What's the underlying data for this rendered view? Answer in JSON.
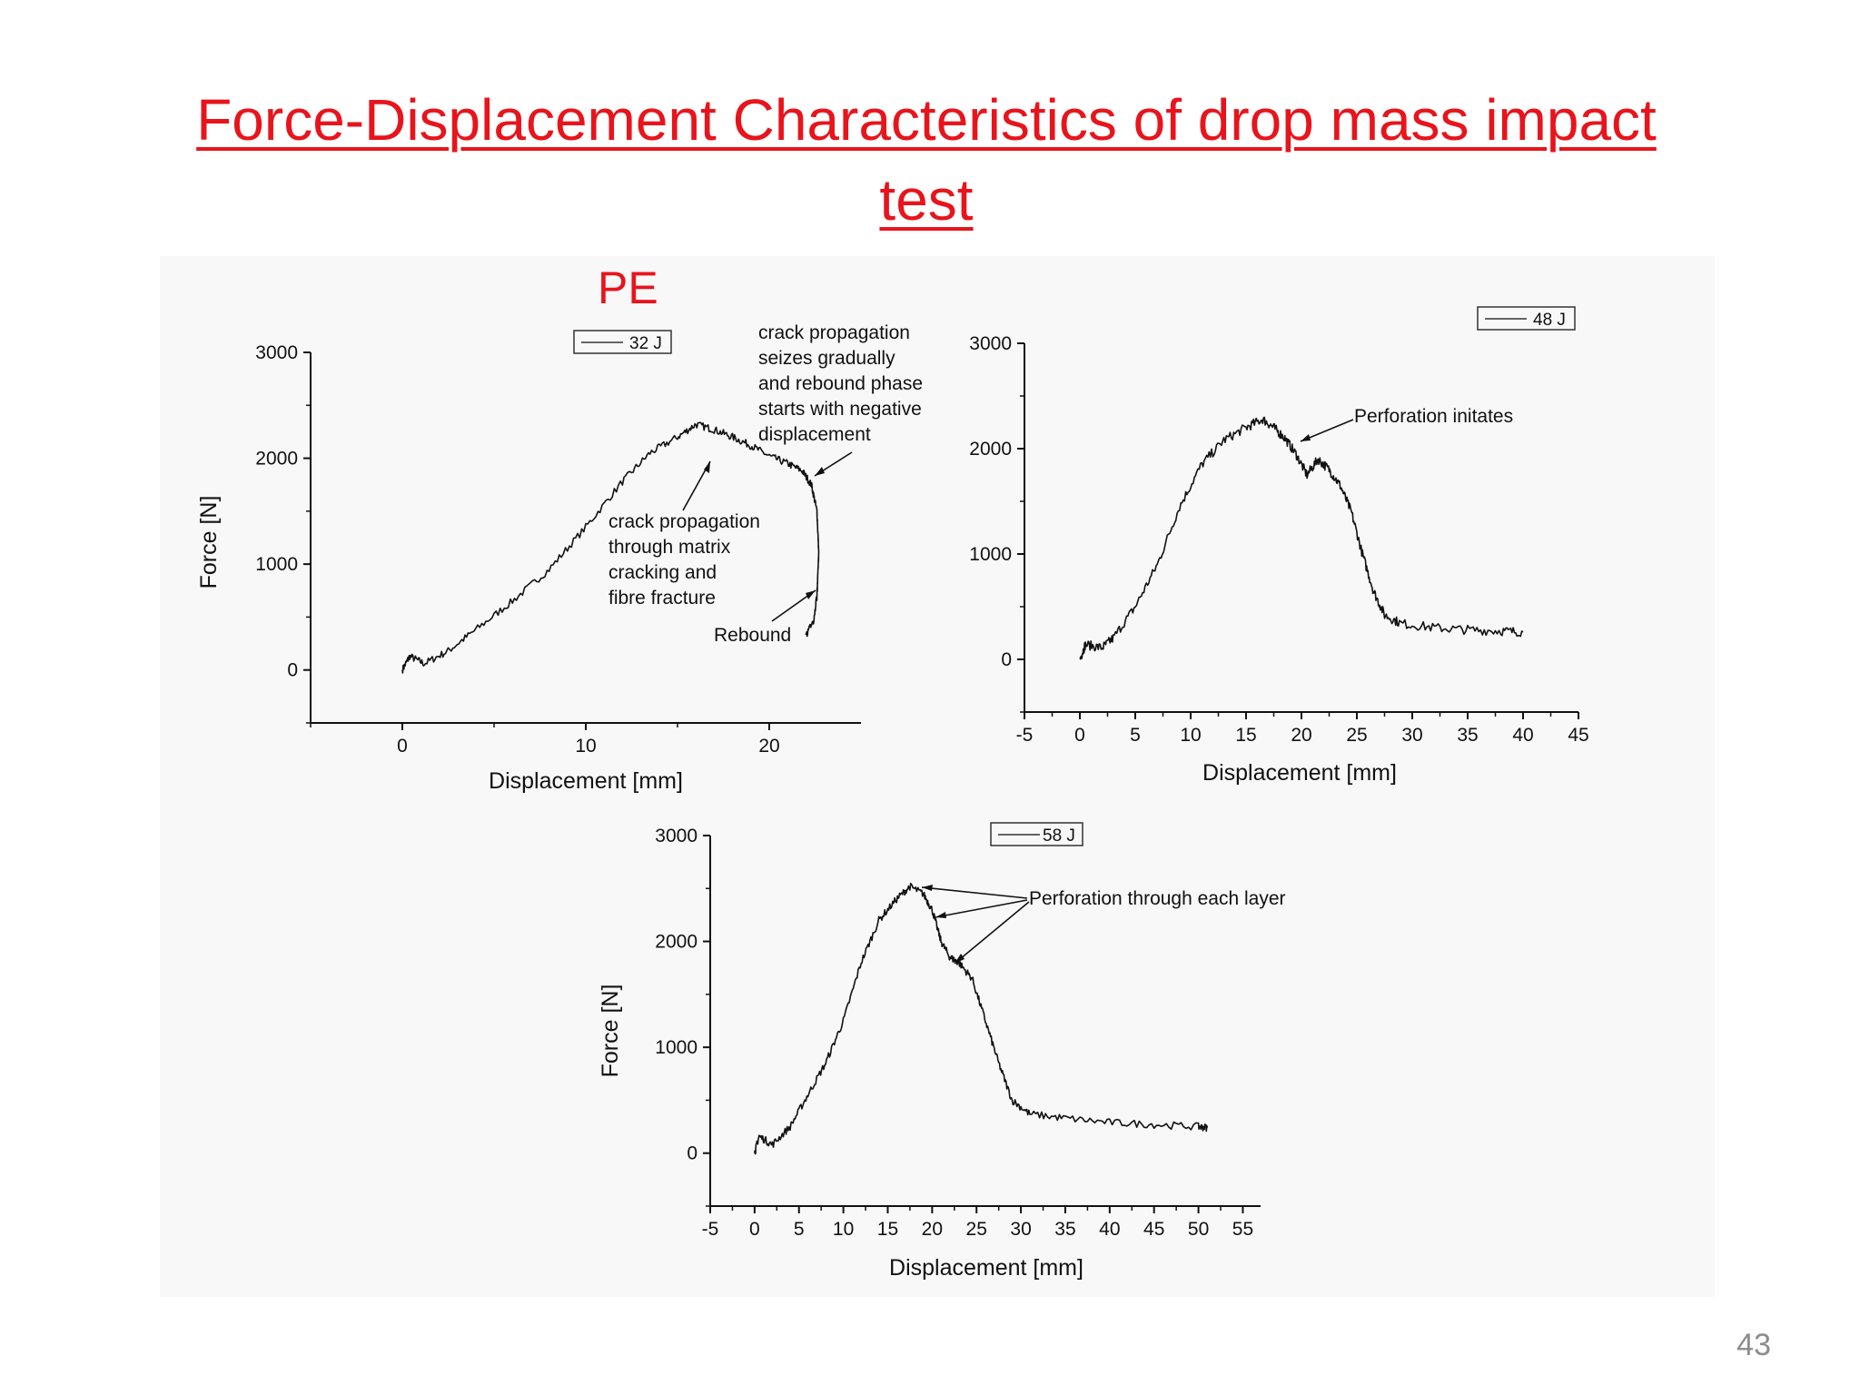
{
  "slide": {
    "title": "Force-Displacement Characteristics of drop mass impact test",
    "section_label": "PE",
    "page_number": "43"
  },
  "colors": {
    "title": "#e8141c",
    "curve": "#111111"
  },
  "chart_data": [
    {
      "type": "line",
      "xlabel": "Displacement [mm]",
      "ylabel": "Force [N]",
      "xlim": [
        -5,
        25
      ],
      "ylim": [
        -500,
        3000
      ],
      "xticks": [
        0,
        10,
        20
      ],
      "yticks": [
        0,
        1000,
        2000,
        3000
      ],
      "legend": "32 J",
      "series": [
        {
          "name": "32 J",
          "x": [
            0,
            0.4,
            1.2,
            2.5,
            4,
            6,
            8,
            10,
            12,
            13.5,
            15,
            16,
            17,
            18,
            19,
            20,
            21,
            21.8,
            22.3,
            22.6,
            22.7,
            22.6,
            22.4,
            22.0
          ],
          "y": [
            0,
            130,
            60,
            180,
            380,
            650,
            950,
            1350,
            1780,
            2050,
            2200,
            2320,
            2270,
            2200,
            2120,
            2020,
            1950,
            1880,
            1750,
            1500,
            1100,
            700,
            450,
            330
          ]
        }
      ],
      "annotations": [
        {
          "text": [
            "crack propagation",
            "seizes  gradually",
            "and rebound phase",
            "starts with negative",
            "displacement"
          ]
        },
        {
          "text": [
            "crack propagation",
            "through matrix",
            "cracking and",
            "fibre fracture"
          ]
        },
        {
          "text": [
            "Rebound"
          ]
        }
      ]
    },
    {
      "type": "line",
      "xlabel": "Displacement [mm]",
      "ylabel": "",
      "xlim": [
        -5,
        45
      ],
      "ylim": [
        -500,
        3000
      ],
      "xticks": [
        -5,
        0,
        5,
        10,
        15,
        20,
        25,
        30,
        35,
        40,
        45
      ],
      "yticks": [
        0,
        1000,
        2000,
        3000
      ],
      "legend": "48 J",
      "series": [
        {
          "name": "48 J",
          "x": [
            0,
            0.5,
            2,
            3,
            5,
            7,
            9,
            11,
            13,
            15,
            16.5,
            17.5,
            18.5,
            19.5,
            20.5,
            21.5,
            22.5,
            23.5,
            24.5,
            25.5,
            26.5,
            27.5,
            29,
            32,
            35,
            38,
            40
          ],
          "y": [
            0,
            140,
            110,
            200,
            500,
            900,
            1450,
            1850,
            2080,
            2200,
            2280,
            2200,
            2100,
            1950,
            1750,
            1900,
            1800,
            1650,
            1400,
            1000,
            650,
            420,
            340,
            300,
            280,
            270,
            260
          ],
          "noise": 45
        }
      ],
      "annotations": [
        {
          "text": [
            "Perforation initates"
          ]
        }
      ]
    },
    {
      "type": "line",
      "xlabel": "Displacement [mm]",
      "ylabel": "Force [N]",
      "xlim": [
        -5,
        57
      ],
      "ylim": [
        -500,
        3000
      ],
      "xticks": [
        -5,
        0,
        5,
        10,
        15,
        20,
        25,
        30,
        35,
        40,
        45,
        50,
        55
      ],
      "yticks": [
        0,
        1000,
        2000,
        3000
      ],
      "legend": "58 J",
      "series": [
        {
          "name": "58 J",
          "x": [
            0,
            0.5,
            2,
            4,
            6,
            8,
            10,
            12,
            14,
            16,
            17.5,
            19,
            20,
            21,
            22,
            23,
            24.5,
            26,
            27.5,
            29,
            31,
            35,
            40,
            45,
            50,
            51
          ],
          "y": [
            0,
            160,
            80,
            250,
            550,
            850,
            1250,
            1800,
            2200,
            2400,
            2520,
            2450,
            2300,
            2000,
            1850,
            1800,
            1650,
            1250,
            850,
            500,
            370,
            330,
            290,
            270,
            250,
            240
          ]
        }
      ],
      "annotations": [
        {
          "text": [
            "Perforation through each layer"
          ]
        }
      ]
    }
  ]
}
